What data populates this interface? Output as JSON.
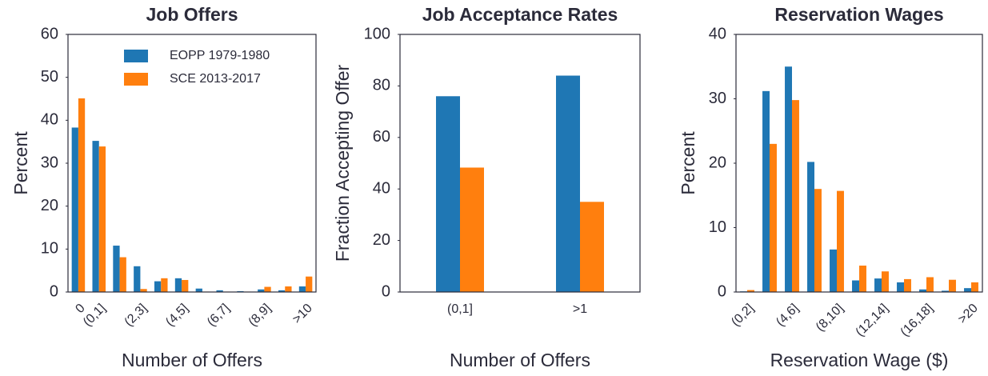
{
  "chart_data": [
    {
      "type": "bar",
      "title": "Job Offers",
      "x_label": "Number of Offers",
      "y_label": "Percent",
      "categories": [
        "0",
        "(0,1]",
        null,
        "(2,3]",
        null,
        "(4,5]",
        null,
        "(6,7]",
        null,
        "(8,9]",
        null,
        ">10"
      ],
      "series": [
        {
          "name": "EOPP 1979-1980",
          "color": "#1f77b4",
          "values": [
            38.3,
            35.2,
            10.8,
            6.0,
            2.5,
            3.2,
            0.8,
            0.4,
            0.2,
            0.6,
            0.4,
            1.3
          ]
        },
        {
          "name": "SCE 2013-2017",
          "color": "#ff7f0e",
          "values": [
            45.1,
            33.9,
            8.1,
            0.7,
            3.2,
            2.8,
            0.1,
            0.1,
            0.1,
            1.2,
            1.3,
            3.6
          ]
        }
      ],
      "ylim": [
        0,
        60
      ],
      "yticks": [
        0,
        10,
        20,
        30,
        40,
        50,
        60
      ],
      "legend": "upper right"
    },
    {
      "type": "bar",
      "title": "Job Acceptance Rates",
      "x_label": "Number of Offers",
      "y_label": "Fraction Accepting Offer",
      "categories": [
        "(0,1]",
        ">1"
      ],
      "series": [
        {
          "color": "#1f77b4",
          "values": [
            76,
            84
          ]
        },
        {
          "color": "#ff7f0e",
          "values": [
            48.3,
            35
          ]
        }
      ],
      "ylim": [
        0,
        100
      ],
      "yticks": [
        0,
        20,
        40,
        60,
        80,
        100
      ]
    },
    {
      "type": "bar",
      "title": "Reservation Wages",
      "x_label": "Reservation Wage ($)",
      "y_label": "Percent",
      "categories": [
        "(0,2]",
        null,
        "(4,6]",
        null,
        "(8,10]",
        null,
        "(12,14]",
        null,
        "(16,18]",
        null,
        ">20"
      ],
      "series": [
        {
          "color": "#1f77b4",
          "values": [
            0.1,
            31.2,
            35.0,
            20.2,
            6.6,
            1.8,
            2.1,
            1.5,
            0.4,
            0.2,
            0.6
          ]
        },
        {
          "color": "#ff7f0e",
          "values": [
            0.3,
            23.0,
            29.8,
            16.0,
            15.7,
            4.1,
            3.2,
            2.0,
            2.3,
            1.9,
            1.5
          ]
        }
      ],
      "ylim": [
        0,
        40
      ],
      "yticks": [
        0,
        10,
        20,
        30,
        40
      ]
    }
  ]
}
